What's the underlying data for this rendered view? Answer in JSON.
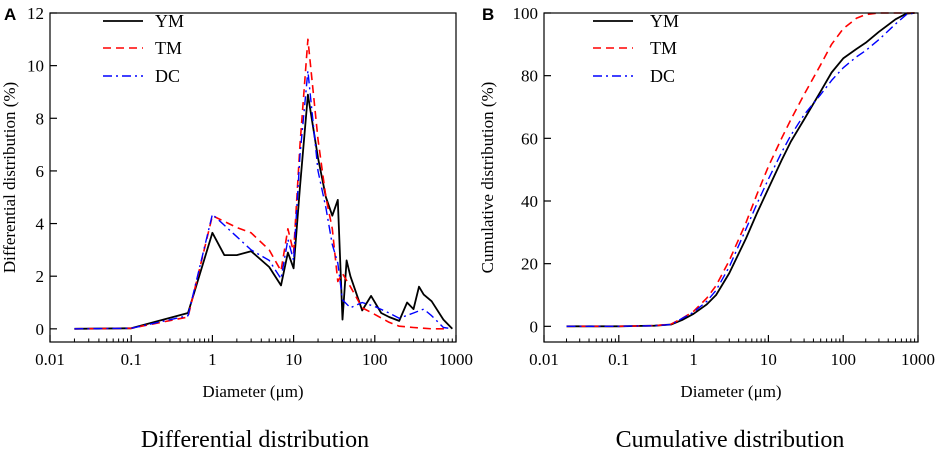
{
  "chart_data": [
    {
      "type": "line",
      "panel": "A",
      "caption": "Differential distribution",
      "xlabel": "Diameter (μm)",
      "ylabel": "Differential distribution (%)",
      "xscale": "log",
      "xlim": [
        0.01,
        1000
      ],
      "ylim": [
        -0.5,
        12
      ],
      "xticks": [
        0.01,
        0.1,
        1,
        10,
        100,
        1000
      ],
      "xtick_labels": [
        "0.01",
        "0.1",
        "1",
        "10",
        "100",
        "1000"
      ],
      "yticks": [
        0,
        2,
        4,
        6,
        8,
        10,
        12
      ],
      "ytick_labels": [
        "0",
        "2",
        "4",
        "6",
        "8",
        "10",
        "12"
      ],
      "legend": "top-left",
      "series": [
        {
          "name": "YM",
          "color": "#000000",
          "dash": "solid",
          "x": [
            0.02,
            0.1,
            0.5,
            1,
            1.4,
            2,
            3,
            5,
            7,
            8.5,
            10,
            12,
            15,
            20,
            25,
            30,
            35,
            40,
            45,
            50,
            70,
            90,
            120,
            150,
            200,
            250,
            300,
            350,
            400,
            500,
            700,
            900
          ],
          "y": [
            0,
            0.02,
            0.6,
            3.65,
            2.8,
            2.8,
            2.95,
            2.35,
            1.65,
            2.9,
            2.3,
            5.4,
            8.9,
            6.5,
            5.0,
            4.3,
            4.9,
            0.35,
            2.6,
            2.0,
            0.7,
            1.25,
            0.6,
            0.45,
            0.3,
            1.0,
            0.75,
            1.6,
            1.3,
            1.05,
            0.35,
            0.0
          ]
        },
        {
          "name": "TM",
          "color": "#ff0000",
          "dash": "dashed",
          "x": [
            0.02,
            0.1,
            0.5,
            1,
            2,
            3,
            5,
            7,
            8.5,
            10,
            12,
            15,
            20,
            25,
            30,
            35,
            40,
            50,
            70,
            100,
            150,
            200,
            300,
            500,
            800
          ],
          "y": [
            0,
            0.02,
            0.45,
            4.3,
            3.85,
            3.65,
            3.0,
            2.2,
            3.8,
            2.9,
            7.0,
            11.0,
            7.2,
            5.0,
            3.8,
            1.8,
            2.1,
            1.6,
            0.8,
            0.55,
            0.25,
            0.1,
            0.05,
            0.0,
            0.0
          ]
        },
        {
          "name": "DC",
          "color": "#0000ff",
          "dash": "dashdot",
          "x": [
            0.02,
            0.1,
            0.5,
            1,
            2,
            3,
            5,
            7,
            8.5,
            10,
            12,
            15,
            20,
            25,
            30,
            35,
            40,
            50,
            70,
            100,
            150,
            200,
            300,
            400,
            500,
            700,
            900
          ],
          "y": [
            0,
            0.02,
            0.5,
            4.35,
            3.5,
            3.0,
            2.6,
            1.9,
            3.4,
            2.6,
            6.6,
            9.8,
            6.0,
            4.6,
            3.2,
            2.5,
            1.1,
            0.8,
            1.0,
            0.85,
            0.6,
            0.4,
            0.6,
            0.75,
            0.5,
            0.05,
            0.0
          ]
        }
      ]
    },
    {
      "type": "line",
      "panel": "B",
      "caption": "Cumulative distribution",
      "xlabel": "Diameter (μm)",
      "ylabel": "Cumulative distribution (%)",
      "xscale": "log",
      "xlim": [
        0.01,
        1000
      ],
      "ylim": [
        -5,
        100
      ],
      "xticks": [
        0.01,
        0.1,
        1,
        10,
        100,
        1000
      ],
      "xtick_labels": [
        "0.01",
        "0.1",
        "1",
        "10",
        "100",
        "1000"
      ],
      "yticks": [
        0,
        20,
        40,
        60,
        80,
        100
      ],
      "ytick_labels": [
        "0",
        "20",
        "40",
        "60",
        "80",
        "100"
      ],
      "legend": "top-left",
      "series": [
        {
          "name": "YM",
          "color": "#000000",
          "dash": "solid",
          "x": [
            0.02,
            0.1,
            0.3,
            0.5,
            0.7,
            1,
            1.5,
            2,
            3,
            5,
            7,
            10,
            15,
            20,
            30,
            50,
            70,
            100,
            150,
            200,
            300,
            500,
            700,
            900
          ],
          "y": [
            0,
            0,
            0.2,
            0.6,
            2.0,
            4.0,
            7.0,
            10.0,
            17.0,
            28.0,
            36.0,
            44.0,
            53.0,
            59.0,
            66.0,
            75.0,
            81.0,
            85.5,
            88.5,
            90.5,
            94.0,
            98.0,
            99.8,
            100
          ]
        },
        {
          "name": "TM",
          "color": "#ff0000",
          "dash": "dashed",
          "x": [
            0.02,
            0.1,
            0.3,
            0.5,
            0.7,
            1,
            1.5,
            2,
            3,
            5,
            7,
            10,
            15,
            20,
            30,
            50,
            70,
            100,
            150,
            200,
            300,
            500,
            700,
            900
          ],
          "y": [
            0,
            0,
            0.2,
            0.7,
            2.5,
            4.8,
            9.0,
            13.0,
            21.0,
            33.0,
            42.0,
            51.0,
            60.0,
            66.0,
            74.0,
            83.5,
            90.0,
            95.0,
            98.3,
            99.5,
            100,
            100,
            100,
            100
          ]
        },
        {
          "name": "DC",
          "color": "#0000ff",
          "dash": "dashdot",
          "x": [
            0.02,
            0.1,
            0.3,
            0.5,
            0.7,
            1,
            1.5,
            2,
            3,
            5,
            7,
            10,
            15,
            20,
            30,
            50,
            70,
            100,
            150,
            200,
            300,
            500,
            700,
            900
          ],
          "y": [
            0,
            0,
            0.2,
            0.6,
            2.5,
            4.5,
            8.0,
            11.5,
            19.0,
            31.0,
            39.0,
            47.0,
            55.5,
            61.0,
            67.5,
            74.0,
            78.5,
            82.5,
            86.0,
            88.0,
            91.5,
            96.5,
            99.5,
            100
          ]
        }
      ]
    }
  ]
}
